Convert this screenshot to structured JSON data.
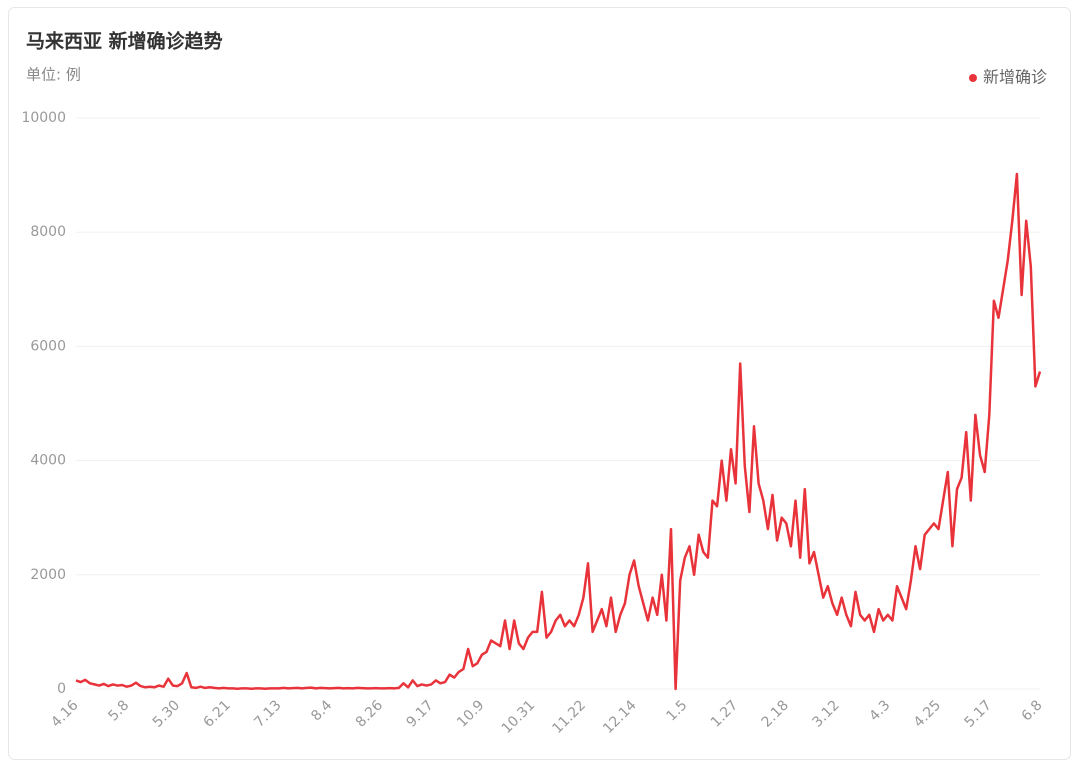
{
  "chart_data": {
    "type": "line",
    "title": "马来西亚 新增确诊趋势",
    "subtitle": "单位: 例",
    "categories": [
      "4.16",
      null,
      null,
      null,
      null,
      null,
      null,
      null,
      null,
      null,
      null,
      "5.8",
      null,
      null,
      null,
      null,
      null,
      null,
      null,
      null,
      null,
      null,
      "5.30",
      null,
      null,
      null,
      null,
      null,
      null,
      null,
      null,
      null,
      null,
      "6.21",
      null,
      null,
      null,
      null,
      null,
      null,
      null,
      null,
      null,
      null,
      "7.13",
      null,
      null,
      null,
      null,
      null,
      null,
      null,
      null,
      null,
      null,
      "8.4",
      null,
      null,
      null,
      null,
      null,
      null,
      null,
      null,
      null,
      null,
      "8.26",
      null,
      null,
      null,
      null,
      null,
      null,
      null,
      null,
      null,
      null,
      "9.17",
      null,
      null,
      null,
      null,
      null,
      null,
      null,
      null,
      null,
      null,
      "10.9",
      null,
      null,
      null,
      null,
      null,
      null,
      null,
      null,
      null,
      null,
      "10.31",
      null,
      null,
      null,
      null,
      null,
      null,
      null,
      null,
      null,
      null,
      "11.22",
      null,
      null,
      null,
      null,
      null,
      null,
      null,
      null,
      null,
      null,
      "12.14",
      null,
      null,
      null,
      null,
      null,
      null,
      null,
      null,
      null,
      null,
      "1.5",
      null,
      null,
      null,
      null,
      null,
      null,
      null,
      null,
      null,
      null,
      "1.27",
      null,
      null,
      null,
      null,
      null,
      null,
      null,
      null,
      null,
      null,
      "2.18",
      null,
      null,
      null,
      null,
      null,
      null,
      null,
      null,
      null,
      null,
      "3.12",
      null,
      null,
      null,
      null,
      null,
      null,
      null,
      null,
      null,
      null,
      "4.3",
      null,
      null,
      null,
      null,
      null,
      null,
      null,
      null,
      null,
      null,
      "4.25",
      null,
      null,
      null,
      null,
      null,
      null,
      null,
      null,
      null,
      null,
      "5.17",
      null,
      null,
      null,
      null,
      null,
      null,
      null,
      null,
      null,
      null,
      "6.8"
    ],
    "series": [
      {
        "name": "新增确诊",
        "color": "#e8333a",
        "values": [
          150,
          120,
          160,
          100,
          80,
          60,
          90,
          50,
          80,
          60,
          70,
          40,
          60,
          110,
          50,
          30,
          40,
          30,
          60,
          40,
          180,
          60,
          50,
          100,
          280,
          30,
          20,
          40,
          20,
          30,
          20,
          10,
          20,
          10,
          10,
          5,
          10,
          10,
          5,
          10,
          10,
          5,
          10,
          10,
          10,
          20,
          10,
          15,
          20,
          10,
          20,
          25,
          10,
          20,
          15,
          10,
          15,
          20,
          10,
          15,
          10,
          20,
          15,
          10,
          10,
          15,
          10,
          10,
          15,
          10,
          20,
          100,
          30,
          150,
          50,
          80,
          60,
          80,
          150,
          100,
          120,
          250,
          200,
          300,
          350,
          700,
          400,
          450,
          600,
          650,
          850,
          800,
          750,
          1200,
          700,
          1200,
          800,
          700,
          900,
          1000,
          1000,
          1700,
          900,
          1000,
          1200,
          1300,
          1100,
          1200,
          1100,
          1300,
          1600,
          2200,
          1000,
          1200,
          1400,
          1100,
          1600,
          1000,
          1300,
          1500,
          2000,
          2250,
          1800,
          1500,
          1200,
          1600,
          1300,
          2000,
          1200,
          2800,
          0,
          1900,
          2300,
          2500,
          2000,
          2700,
          2400,
          2300,
          3300,
          3200,
          4000,
          3300,
          4200,
          3600,
          5700,
          3900,
          3100,
          4600,
          3600,
          3300,
          2800,
          3400,
          2600,
          3000,
          2900,
          2500,
          3300,
          2300,
          3500,
          2200,
          2400,
          2000,
          1600,
          1800,
          1500,
          1300,
          1600,
          1300,
          1100,
          1700,
          1300,
          1200,
          1300,
          1000,
          1400,
          1200,
          1300,
          1200,
          1800,
          1600,
          1400,
          1900,
          2500,
          2100,
          2700,
          2800,
          2900,
          2800,
          3300,
          3800,
          2500,
          3500,
          3700,
          4500,
          3300,
          4800,
          4100,
          3800,
          4800,
          6800,
          6500,
          7000,
          7500,
          8200,
          9020,
          6900,
          8200,
          7400,
          5300,
          5560
        ]
      }
    ],
    "ylim": [
      0,
      10000
    ],
    "yticks": [
      0,
      2000,
      4000,
      6000,
      8000,
      10000
    ],
    "grid": true,
    "legend": "top-right"
  }
}
